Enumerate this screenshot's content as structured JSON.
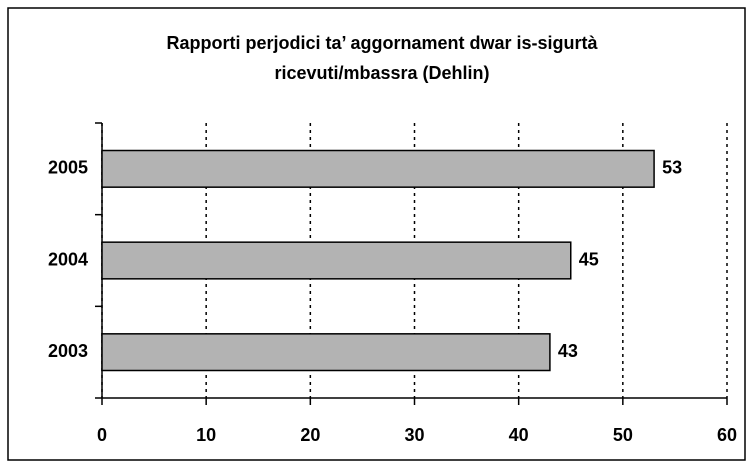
{
  "chart_data": {
    "type": "bar",
    "orientation": "horizontal",
    "title": "Rapporti perjodici ta’ aggornament dwar is-sigurtà ricevuti/mbassra (Dehlin)",
    "categories": [
      "2003",
      "2004",
      "2005"
    ],
    "values": [
      43,
      45,
      53
    ],
    "color": "#b3b3b3",
    "xlim": [
      0,
      60
    ],
    "xticks": [
      0,
      10,
      20,
      30,
      40,
      50,
      60
    ],
    "grid": true
  }
}
